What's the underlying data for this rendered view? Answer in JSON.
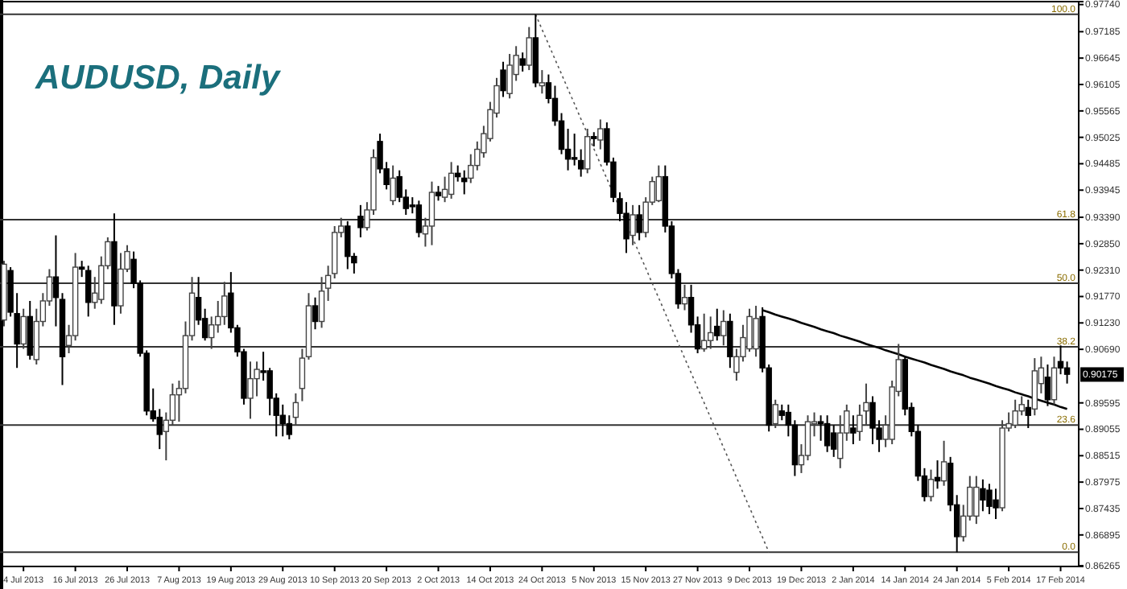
{
  "chart_data": {
    "type": "candlestick",
    "title": "AUDUSD, Daily",
    "categories": [
      null,
      null,
      null,
      "4 Jul 2013",
      null,
      null,
      null,
      null,
      null,
      null,
      null,
      "16 Jul 2013",
      null,
      null,
      null,
      null,
      null,
      null,
      null,
      "26 Jul 2013",
      null,
      null,
      null,
      null,
      null,
      null,
      null,
      "7 Aug 2013",
      null,
      null,
      null,
      null,
      null,
      null,
      null,
      "19 Aug 2013",
      null,
      null,
      null,
      null,
      null,
      null,
      null,
      "29 Aug 2013",
      null,
      null,
      null,
      null,
      null,
      null,
      null,
      "10 Sep 2013",
      null,
      null,
      null,
      null,
      null,
      null,
      null,
      "20 Sep 2013",
      null,
      null,
      null,
      null,
      null,
      null,
      null,
      "2 Oct 2013",
      null,
      null,
      null,
      null,
      null,
      null,
      null,
      "14 Oct 2013",
      null,
      null,
      null,
      null,
      null,
      null,
      null,
      "24 Oct 2013",
      null,
      null,
      null,
      null,
      null,
      null,
      null,
      "5 Nov 2013",
      null,
      null,
      null,
      null,
      null,
      null,
      null,
      "15 Nov 2013",
      null,
      null,
      null,
      null,
      null,
      null,
      null,
      "27 Nov 2013",
      null,
      null,
      null,
      null,
      null,
      null,
      null,
      "9 Dec 2013",
      null,
      null,
      null,
      null,
      null,
      null,
      null,
      "19 Dec 2013",
      null,
      null,
      null,
      null,
      null,
      null,
      null,
      "2 Jan 2014",
      null,
      null,
      null,
      null,
      null,
      null,
      null,
      "14 Jan 2014",
      null,
      null,
      null,
      null,
      null,
      null,
      null,
      "24 Jan 2014",
      null,
      null,
      null,
      null,
      null,
      null,
      null,
      "5 Feb 2014",
      null,
      null,
      null,
      null,
      null,
      null,
      null,
      "17 Feb 2014",
      null
    ],
    "ohlc": [
      [
        0.9129,
        0.925,
        0.9116,
        0.9243
      ],
      [
        0.923,
        0.9237,
        0.9136,
        0.9145
      ],
      [
        0.9142,
        0.9184,
        0.9031,
        0.908
      ],
      [
        0.908,
        0.9152,
        0.907,
        0.9136
      ],
      [
        0.9136,
        0.9168,
        0.9048,
        0.9057
      ],
      [
        0.9048,
        0.9152,
        0.9038,
        0.9126
      ],
      [
        0.9126,
        0.9184,
        0.9116,
        0.9168
      ],
      [
        0.9168,
        0.9233,
        0.9158,
        0.9217
      ],
      [
        0.9217,
        0.9302,
        0.9116,
        0.9175
      ],
      [
        0.9171,
        0.9184,
        0.8996,
        0.9054
      ],
      [
        0.9077,
        0.9119,
        0.9061,
        0.9097
      ],
      [
        0.9097,
        0.9266,
        0.9087,
        0.9237
      ],
      [
        0.9237,
        0.925,
        0.9217,
        0.9233
      ],
      [
        0.923,
        0.924,
        0.9136,
        0.9165
      ],
      [
        0.9165,
        0.9217,
        0.9152,
        0.9184
      ],
      [
        0.9171,
        0.9259,
        0.9162,
        0.924
      ],
      [
        0.924,
        0.9298,
        0.9233,
        0.9289
      ],
      [
        0.9289,
        0.9347,
        0.9119,
        0.9158
      ],
      [
        0.9158,
        0.9266,
        0.9142,
        0.9233
      ],
      [
        0.9233,
        0.9282,
        0.9227,
        0.9269
      ],
      [
        0.9253,
        0.9269,
        0.9194,
        0.9204
      ],
      [
        0.9204,
        0.921,
        0.9054,
        0.9061
      ],
      [
        0.9061,
        0.9067,
        0.8934,
        0.8943
      ],
      [
        0.8943,
        0.8989,
        0.8921,
        0.8927
      ],
      [
        0.893,
        0.8947,
        0.8865,
        0.8895
      ],
      [
        0.8901,
        0.894,
        0.8842,
        0.8924
      ],
      [
        0.8924,
        0.8999,
        0.8914,
        0.8976
      ],
      [
        0.8976,
        0.9005,
        0.8921,
        0.8989
      ],
      [
        0.8989,
        0.9126,
        0.8979,
        0.9097
      ],
      [
        0.9097,
        0.9217,
        0.9087,
        0.9184
      ],
      [
        0.9175,
        0.9217,
        0.9119,
        0.9129
      ],
      [
        0.9132,
        0.9152,
        0.9087,
        0.9093
      ],
      [
        0.9093,
        0.9136,
        0.907,
        0.9119
      ],
      [
        0.9119,
        0.9168,
        0.9103,
        0.9136
      ],
      [
        0.9136,
        0.9207,
        0.9119,
        0.9178
      ],
      [
        0.9184,
        0.9227,
        0.9103,
        0.9113
      ],
      [
        0.9113,
        0.9119,
        0.9054,
        0.9064
      ],
      [
        0.9064,
        0.907,
        0.8956,
        0.8969
      ],
      [
        0.8969,
        0.9044,
        0.8927,
        0.9009
      ],
      [
        0.9009,
        0.9044,
        0.8973,
        0.9028
      ],
      [
        0.9025,
        0.9064,
        0.9005,
        0.9022
      ],
      [
        0.9025,
        0.9031,
        0.8934,
        0.8969
      ],
      [
        0.8969,
        0.8979,
        0.8891,
        0.8934
      ],
      [
        0.8934,
        0.8956,
        0.8891,
        0.8917
      ],
      [
        0.8917,
        0.8934,
        0.8885,
        0.8895
      ],
      [
        0.893,
        0.8979,
        0.8914,
        0.896
      ],
      [
        0.8989,
        0.907,
        0.8963,
        0.9051
      ],
      [
        0.9054,
        0.9184,
        0.9048,
        0.9158
      ],
      [
        0.9158,
        0.9175,
        0.911,
        0.9126
      ],
      [
        0.9126,
        0.9217,
        0.9113,
        0.9188
      ],
      [
        0.9194,
        0.924,
        0.9168,
        0.922
      ],
      [
        0.9224,
        0.9321,
        0.9214,
        0.9308
      ],
      [
        0.9308,
        0.9338,
        0.9298,
        0.9321
      ],
      [
        0.9321,
        0.9331,
        0.9233,
        0.9259
      ],
      [
        0.9259,
        0.9266,
        0.9224,
        0.9246
      ],
      [
        0.9341,
        0.9364,
        0.9298,
        0.9318
      ],
      [
        0.9318,
        0.937,
        0.9312,
        0.9354
      ],
      [
        0.9354,
        0.9478,
        0.9344,
        0.9461
      ],
      [
        0.9494,
        0.951,
        0.9429,
        0.9438
      ],
      [
        0.9438,
        0.9452,
        0.9396,
        0.9406
      ],
      [
        0.9373,
        0.9445,
        0.9364,
        0.9419
      ],
      [
        0.9422,
        0.9435,
        0.937,
        0.938
      ],
      [
        0.938,
        0.9396,
        0.9344,
        0.9357
      ],
      [
        0.9364,
        0.938,
        0.9347,
        0.9361
      ],
      [
        0.9364,
        0.9373,
        0.9298,
        0.9308
      ],
      [
        0.9305,
        0.9338,
        0.9279,
        0.9321
      ],
      [
        0.9321,
        0.9412,
        0.9282,
        0.939
      ],
      [
        0.939,
        0.9403,
        0.9373,
        0.9383
      ],
      [
        0.938,
        0.9422,
        0.937,
        0.9396
      ],
      [
        0.9386,
        0.9452,
        0.9377,
        0.9429
      ],
      [
        0.9429,
        0.9445,
        0.9412,
        0.9422
      ],
      [
        0.9419,
        0.9435,
        0.9386,
        0.9412
      ],
      [
        0.9419,
        0.9468,
        0.9409,
        0.9445
      ],
      [
        0.9445,
        0.9494,
        0.9435,
        0.9478
      ],
      [
        0.9471,
        0.9526,
        0.9461,
        0.951
      ],
      [
        0.95,
        0.9575,
        0.9494,
        0.9559
      ],
      [
        0.9552,
        0.9624,
        0.9543,
        0.9608
      ],
      [
        0.964,
        0.9657,
        0.9585,
        0.9598
      ],
      [
        0.9592,
        0.9673,
        0.9582,
        0.965
      ],
      [
        0.9631,
        0.9689,
        0.9618,
        0.967
      ],
      [
        0.9663,
        0.9676,
        0.9637,
        0.965
      ],
      [
        0.965,
        0.9728,
        0.964,
        0.9706
      ],
      [
        0.9706,
        0.9754,
        0.9605,
        0.9614
      ],
      [
        0.9608,
        0.964,
        0.9592,
        0.9614
      ],
      [
        0.9614,
        0.9631,
        0.9572,
        0.9582
      ],
      [
        0.9582,
        0.9608,
        0.9526,
        0.9536
      ],
      [
        0.9536,
        0.9552,
        0.9468,
        0.9478
      ],
      [
        0.9478,
        0.952,
        0.9435,
        0.9458
      ],
      [
        0.9461,
        0.951,
        0.9445,
        0.9458
      ],
      [
        0.9455,
        0.9478,
        0.9422,
        0.9438
      ],
      [
        0.9438,
        0.952,
        0.9429,
        0.9504
      ],
      [
        0.9504,
        0.9513,
        0.9484,
        0.95
      ],
      [
        0.9497,
        0.9539,
        0.9478,
        0.952
      ],
      [
        0.952,
        0.9533,
        0.9445,
        0.9452
      ],
      [
        0.9452,
        0.9461,
        0.937,
        0.938
      ],
      [
        0.9377,
        0.939,
        0.9331,
        0.9347
      ],
      [
        0.9347,
        0.937,
        0.9266,
        0.9295
      ],
      [
        0.9302,
        0.9364,
        0.9282,
        0.9344
      ],
      [
        0.9344,
        0.9364,
        0.9292,
        0.9308
      ],
      [
        0.9308,
        0.938,
        0.9298,
        0.937
      ],
      [
        0.937,
        0.9422,
        0.9364,
        0.9412
      ],
      [
        0.9373,
        0.9445,
        0.937,
        0.9422
      ],
      [
        0.9422,
        0.9445,
        0.9308,
        0.9321
      ],
      [
        0.9321,
        0.9331,
        0.9214,
        0.9224
      ],
      [
        0.9224,
        0.9233,
        0.9152,
        0.9162
      ],
      [
        0.9162,
        0.9201,
        0.9149,
        0.9175
      ],
      [
        0.9175,
        0.9201,
        0.9103,
        0.9119
      ],
      [
        0.9119,
        0.9136,
        0.9061,
        0.907
      ],
      [
        0.907,
        0.9142,
        0.9064,
        0.9087
      ],
      [
        0.9087,
        0.9136,
        0.907,
        0.9103
      ],
      [
        0.9116,
        0.9152,
        0.9087,
        0.9097
      ],
      [
        0.9097,
        0.9149,
        0.9077,
        0.9126
      ],
      [
        0.9126,
        0.9142,
        0.9031,
        0.9054
      ],
      [
        0.9022,
        0.907,
        0.9005,
        0.9054
      ],
      [
        0.9054,
        0.9119,
        0.9044,
        0.9093
      ],
      [
        0.907,
        0.9152,
        0.9064,
        0.9136
      ],
      [
        0.907,
        0.9158,
        0.9054,
        0.9132
      ],
      [
        0.9136,
        0.9155,
        0.9022,
        0.9031
      ],
      [
        0.9031,
        0.9038,
        0.8901,
        0.8914
      ],
      [
        0.8917,
        0.8966,
        0.8908,
        0.8956
      ],
      [
        0.8943,
        0.8956,
        0.8924,
        0.8934
      ],
      [
        0.894,
        0.8956,
        0.8891,
        0.8914
      ],
      [
        0.8914,
        0.8924,
        0.881,
        0.8833
      ],
      [
        0.8833,
        0.8875,
        0.8816,
        0.8852
      ],
      [
        0.8852,
        0.8934,
        0.8842,
        0.8921
      ],
      [
        0.8917,
        0.894,
        0.8891,
        0.8921
      ],
      [
        0.8921,
        0.8934,
        0.8882,
        0.8917
      ],
      [
        0.8917,
        0.8934,
        0.8859,
        0.8872
      ],
      [
        0.8898,
        0.8914,
        0.8849,
        0.8865
      ],
      [
        0.8846,
        0.8934,
        0.8826,
        0.8898
      ],
      [
        0.8898,
        0.8956,
        0.8882,
        0.8943
      ],
      [
        0.8908,
        0.8934,
        0.8875,
        0.8898
      ],
      [
        0.8901,
        0.8956,
        0.8882,
        0.8934
      ],
      [
        0.8943,
        0.8999,
        0.8914,
        0.896
      ],
      [
        0.896,
        0.8973,
        0.8875,
        0.8908
      ],
      [
        0.8908,
        0.8924,
        0.8859,
        0.8885
      ],
      [
        0.8885,
        0.8934,
        0.8869,
        0.8914
      ],
      [
        0.8885,
        0.9005,
        0.8875,
        0.8992
      ],
      [
        0.8983,
        0.908,
        0.8973,
        0.9048
      ],
      [
        0.9048,
        0.9054,
        0.8934,
        0.8947
      ],
      [
        0.895,
        0.896,
        0.8891,
        0.8901
      ],
      [
        0.8901,
        0.8914,
        0.88,
        0.881
      ],
      [
        0.881,
        0.8826,
        0.8758,
        0.8768
      ],
      [
        0.8768,
        0.8823,
        0.8758,
        0.8803
      ],
      [
        0.8807,
        0.8842,
        0.8784,
        0.88
      ],
      [
        0.88,
        0.8882,
        0.879,
        0.8839
      ],
      [
        0.8836,
        0.8849,
        0.8738,
        0.8751
      ],
      [
        0.8751,
        0.8771,
        0.8654,
        0.8686
      ],
      [
        0.8686,
        0.8751,
        0.8676,
        0.8728
      ],
      [
        0.8728,
        0.881,
        0.8719,
        0.8787
      ],
      [
        0.8728,
        0.881,
        0.8712,
        0.8787
      ],
      [
        0.8784,
        0.8803,
        0.8738,
        0.8761
      ],
      [
        0.8781,
        0.8794,
        0.8732,
        0.8748
      ],
      [
        0.8761,
        0.8784,
        0.8722,
        0.8745
      ],
      [
        0.8745,
        0.8924,
        0.8738,
        0.8908
      ],
      [
        0.8908,
        0.894,
        0.8901,
        0.8917
      ],
      [
        0.8914,
        0.8966,
        0.8908,
        0.8943
      ],
      [
        0.8943,
        0.8973,
        0.8934,
        0.8956
      ],
      [
        0.895,
        0.8966,
        0.8908,
        0.8934
      ],
      [
        0.8947,
        0.9051,
        0.8934,
        0.9025
      ],
      [
        0.8999,
        0.9054,
        0.8979,
        0.9031
      ],
      [
        0.9012,
        0.9038,
        0.8953,
        0.8966
      ],
      [
        0.8966,
        0.9054,
        0.8956,
        0.9031
      ],
      [
        0.9044,
        0.9077,
        0.9018,
        0.9031
      ],
      [
        0.9031,
        0.9044,
        0.8999,
        0.9018
      ]
    ],
    "series": [
      {
        "type": "line",
        "color": "#000000",
        "line_style": "solid",
        "values": [
          null,
          null,
          null,
          null,
          null,
          null,
          null,
          null,
          null,
          null,
          null,
          null,
          null,
          null,
          null,
          null,
          null,
          null,
          null,
          null,
          null,
          null,
          null,
          null,
          null,
          null,
          null,
          null,
          null,
          null,
          null,
          null,
          null,
          null,
          null,
          null,
          null,
          null,
          null,
          null,
          null,
          null,
          null,
          null,
          null,
          null,
          null,
          null,
          null,
          null,
          null,
          null,
          null,
          null,
          null,
          null,
          null,
          null,
          null,
          null,
          null,
          null,
          null,
          null,
          null,
          null,
          null,
          null,
          null,
          null,
          null,
          null,
          null,
          null,
          null,
          null,
          null,
          null,
          null,
          null,
          null,
          null,
          null,
          null,
          null,
          null,
          null,
          null,
          null,
          null,
          null,
          null,
          null,
          null,
          null,
          null,
          null,
          null,
          null,
          null,
          null,
          null,
          null,
          null,
          null,
          null,
          null,
          null,
          null,
          null,
          null,
          null,
          null,
          null,
          null,
          null,
          null,
          0.9149,
          0.9145,
          0.914,
          0.9136,
          0.9132,
          0.9128,
          0.9123,
          0.9119,
          0.9115,
          0.911,
          0.9106,
          0.9102,
          0.9097,
          0.9093,
          0.9089,
          0.9085,
          0.908,
          0.9076,
          0.9072,
          0.9067,
          0.9063,
          0.9059,
          0.9054,
          0.905,
          0.9046,
          0.9042,
          0.9037,
          0.9033,
          0.9029,
          0.9024,
          0.902,
          0.9016,
          0.9011,
          0.9007,
          0.9003,
          0.8999,
          0.8994,
          0.899,
          0.8986,
          0.8981,
          0.8977,
          0.8973,
          0.8968,
          0.8964,
          0.896,
          0.8956,
          0.8951,
          0.8947
        ]
      },
      {
        "type": "line",
        "color": "#555555",
        "line_style": "dotted",
        "values": [
          null,
          null,
          null,
          null,
          null,
          null,
          null,
          null,
          null,
          null,
          null,
          null,
          null,
          null,
          null,
          null,
          null,
          null,
          null,
          null,
          null,
          null,
          null,
          null,
          null,
          null,
          null,
          null,
          null,
          null,
          null,
          null,
          null,
          null,
          null,
          null,
          null,
          null,
          null,
          null,
          null,
          null,
          null,
          null,
          null,
          null,
          null,
          null,
          null,
          null,
          null,
          null,
          null,
          null,
          null,
          null,
          null,
          null,
          null,
          null,
          null,
          null,
          null,
          null,
          null,
          null,
          null,
          null,
          null,
          null,
          null,
          null,
          null,
          null,
          null,
          null,
          null,
          null,
          null,
          null,
          null,
          null,
          0.9754,
          0.9723,
          0.9693,
          0.9662,
          0.9632,
          0.9601,
          0.9571,
          0.954,
          0.951,
          0.9479,
          0.9448,
          0.9418,
          0.9387,
          0.9357,
          0.9326,
          0.9296,
          0.9265,
          0.9235,
          0.9204,
          0.9174,
          0.9143,
          0.9112,
          0.9082,
          0.9051,
          0.9021,
          0.899,
          0.896,
          0.8929,
          0.8899,
          0.8868,
          0.8838,
          0.8807,
          0.8776,
          0.8746,
          0.8715,
          0.8685,
          0.8654,
          null,
          null,
          null,
          null,
          null,
          null,
          null,
          null,
          null,
          null,
          null,
          null,
          null,
          null,
          null,
          null,
          null,
          null,
          null,
          null,
          null,
          null,
          null,
          null,
          null,
          null,
          null,
          null,
          null,
          null,
          null,
          null,
          null,
          null,
          null,
          null,
          null,
          null,
          null,
          null,
          null,
          null,
          null,
          null,
          null,
          null
        ]
      }
    ],
    "ylim": [
      0.8625,
      0.978
    ],
    "yticks": [
      {
        "value": 0.9774,
        "label": "0.97740"
      },
      {
        "value": 0.97185,
        "label": "0.97185"
      },
      {
        "value": 0.96645,
        "label": "0.96645"
      },
      {
        "value": 0.96105,
        "label": "0.96105"
      },
      {
        "value": 0.95565,
        "label": "0.95565"
      },
      {
        "value": 0.95025,
        "label": "0.95025"
      },
      {
        "value": 0.94485,
        "label": "0.94485"
      },
      {
        "value": 0.93945,
        "label": "0.93945"
      },
      {
        "value": 0.9339,
        "label": "0.93390"
      },
      {
        "value": 0.9285,
        "label": "0.92850"
      },
      {
        "value": 0.9231,
        "label": "0.92310"
      },
      {
        "value": 0.9177,
        "label": "0.91770"
      },
      {
        "value": 0.9123,
        "label": "0.91230"
      },
      {
        "value": 0.9069,
        "label": "0.90690"
      },
      {
        "value": 0.89595,
        "label": "0.89595"
      },
      {
        "value": 0.89055,
        "label": "0.89055"
      },
      {
        "value": 0.88515,
        "label": "0.88515"
      },
      {
        "value": 0.87975,
        "label": "0.87975"
      },
      {
        "value": 0.87435,
        "label": "0.87435"
      },
      {
        "value": 0.86895,
        "label": "0.86895"
      },
      {
        "value": 0.86265,
        "label": "0.86265"
      }
    ],
    "ref_lines": [
      {
        "axis": "y",
        "value": 0.9754
      },
      {
        "axis": "y",
        "value": 0.9334
      },
      {
        "axis": "y",
        "value": 0.9204
      },
      {
        "axis": "y",
        "value": 0.9074
      },
      {
        "axis": "y",
        "value": 0.8914
      },
      {
        "axis": "y",
        "value": 0.8654
      }
    ],
    "annotations": [
      {
        "text": "0.90175",
        "y": 0.90175
      },
      {
        "text": "100.0",
        "y": 0.9754
      },
      {
        "text": "61.8",
        "y": 0.9334
      },
      {
        "text": "50.0",
        "y": 0.9204
      },
      {
        "text": "38.2",
        "y": 0.9074
      },
      {
        "text": "23.6",
        "y": 0.8914
      },
      {
        "text": "0.0",
        "y": 0.8654
      }
    ],
    "grid": false
  }
}
